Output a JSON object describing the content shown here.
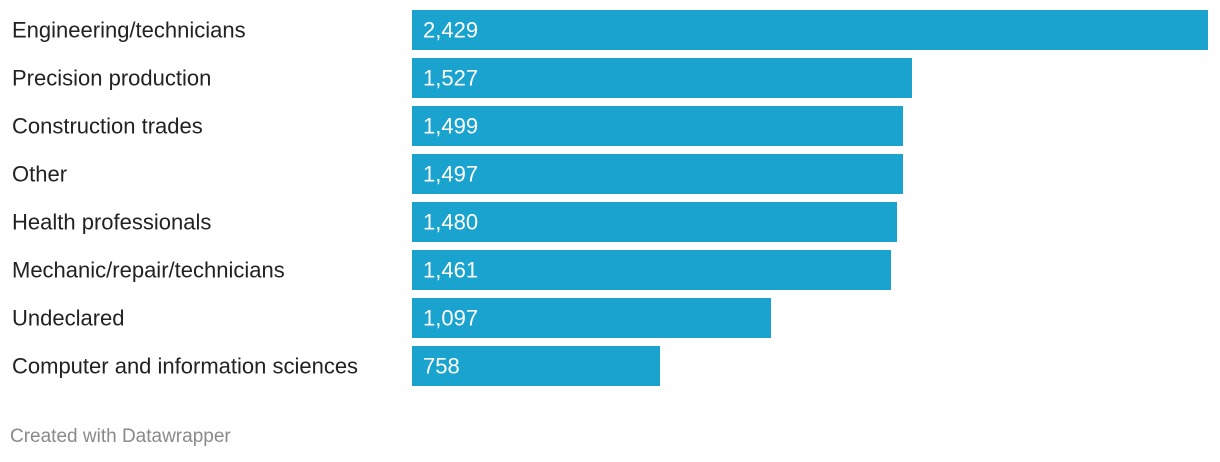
{
  "chart_data": {
    "type": "bar",
    "orientation": "horizontal",
    "categories": [
      "Engineering/technicians",
      "Precision production",
      "Construction trades",
      "Other",
      "Health professionals",
      "Mechanic/repair/technicians",
      "Undeclared",
      "Computer and information sciences"
    ],
    "values": [
      2429,
      1527,
      1499,
      1497,
      1480,
      1461,
      1097,
      758
    ],
    "value_labels": [
      "2,429",
      "1,527",
      "1,499",
      "1,497",
      "1,480",
      "1,461",
      "1,097",
      "758"
    ],
    "xlim": [
      0,
      2429
    ],
    "grid": false,
    "legend": "none",
    "bar_color": "#1ba3cf",
    "label_color": "#222222",
    "value_label_color": "#ffffff"
  },
  "footer": {
    "credit": "Created with Datawrapper"
  }
}
